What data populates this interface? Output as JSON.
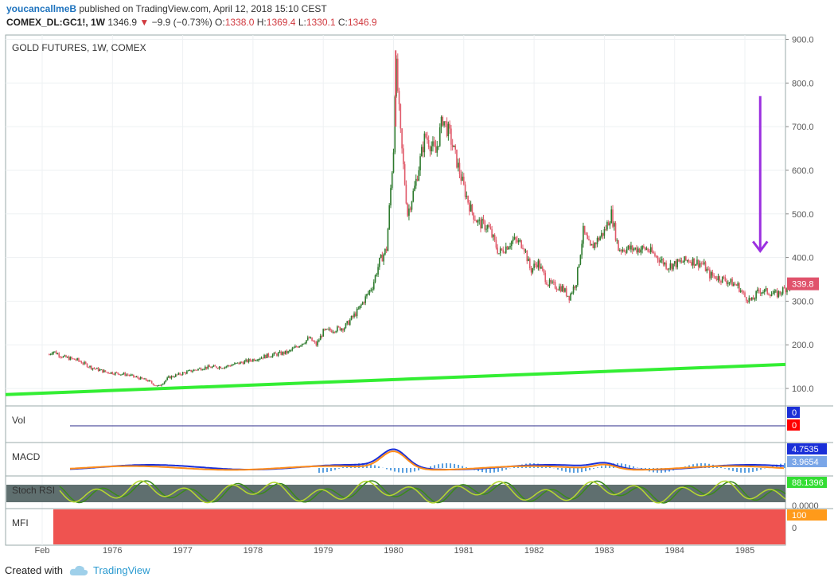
{
  "header": {
    "username": "youcancallmeB",
    "published": " published on TradingView.com, April 12, 2018 15:10 CEST",
    "symbol": "COMEX_DL:GC1!, 1W",
    "last": "1346.9",
    "change": "−9.9 (−0.73%)",
    "o_label": "O:",
    "o_val": "1338.0",
    "h_label": "H:",
    "h_val": "1369.4",
    "l_label": "L:",
    "l_val": "1330.1",
    "c_label": "C:",
    "c_val": "1346.9"
  },
  "footer": {
    "created_with": "Created with",
    "brand": "TradingView",
    "brand_icon": "cloud-icon"
  },
  "colors": {
    "up": "#2d7a2d",
    "down": "#e05a6a",
    "trendline": "#33ee33",
    "arrow": "#9b30e0",
    "macd_line": "#1a2fd8",
    "signal_line": "#ff8c1a",
    "hist": "#5aa0e0",
    "stoch_bg": "#5f6f6f",
    "stoch_k": "#3a8a1a",
    "stoch_d": "#b6d830",
    "mfi_fill": "#ef5350"
  },
  "chart_data": {
    "type": "candlestick",
    "title": "GOLD FUTURES, 1W, COMEX",
    "y_ticks": [
      "900.0",
      "800.0",
      "700.0",
      "600.0",
      "500.0",
      "400.0",
      "300.0",
      "200.0",
      "100.0"
    ],
    "ylim": [
      60,
      910
    ],
    "x_labels": [
      "Feb",
      "1976",
      "1977",
      "1978",
      "1979",
      "1980",
      "1981",
      "1982",
      "1983",
      "1984",
      "1985"
    ],
    "last_price": "339.8",
    "price_path": [
      [
        "1975.1",
        178
      ],
      [
        "1975.15",
        186
      ],
      [
        "1975.3",
        172
      ],
      [
        "1975.5",
        165
      ],
      [
        "1975.7",
        148
      ],
      [
        "1975.9",
        138
      ],
      [
        "1976.2",
        132
      ],
      [
        "1976.5",
        118
      ],
      [
        "1976.65",
        104
      ],
      [
        "1976.8",
        125
      ],
      [
        "1977.0",
        135
      ],
      [
        "1977.3",
        148
      ],
      [
        "1977.6",
        150
      ],
      [
        "1977.9",
        162
      ],
      [
        "1978.2",
        175
      ],
      [
        "1978.5",
        183
      ],
      [
        "1978.8",
        215
      ],
      [
        "1978.9",
        200
      ],
      [
        "1979.0",
        230
      ],
      [
        "1979.3",
        240
      ],
      [
        "1979.5",
        280
      ],
      [
        "1979.7",
        335
      ],
      [
        "1979.8",
        390
      ],
      [
        "1979.9",
        420
      ],
      [
        "1980.0",
        650
      ],
      [
        "1980.03",
        860
      ],
      [
        "1980.1",
        680
      ],
      [
        "1980.2",
        500
      ],
      [
        "1980.3",
        560
      ],
      [
        "1980.45",
        680
      ],
      [
        "1980.6",
        640
      ],
      [
        "1980.7",
        720
      ],
      [
        "1980.8",
        680
      ],
      [
        "1980.9",
        620
      ],
      [
        "1981.0",
        560
      ],
      [
        "1981.1",
        510
      ],
      [
        "1981.2",
        480
      ],
      [
        "1981.35",
        470
      ],
      [
        "1981.5",
        410
      ],
      [
        "1981.7",
        440
      ],
      [
        "1981.85",
        430
      ],
      [
        "1981.95",
        370
      ],
      [
        "1982.05",
        390
      ],
      [
        "1982.2",
        340
      ],
      [
        "1982.4",
        330
      ],
      [
        "1982.5",
        310
      ],
      [
        "1982.6",
        345
      ],
      [
        "1982.7",
        460
      ],
      [
        "1982.8",
        420
      ],
      [
        "1982.9",
        440
      ],
      [
        "1983.0",
        460
      ],
      [
        "1983.1",
        500
      ],
      [
        "1983.2",
        420
      ],
      [
        "1983.4",
        420
      ],
      [
        "1983.6",
        420
      ],
      [
        "1983.8",
        395
      ],
      [
        "1983.9",
        380
      ],
      [
        "1984.0",
        385
      ],
      [
        "1984.2",
        395
      ],
      [
        "1984.4",
        385
      ],
      [
        "1984.5",
        360
      ],
      [
        "1984.7",
        350
      ],
      [
        "1984.9",
        335
      ],
      [
        "1985.0",
        310
      ],
      [
        "1985.1",
        300
      ],
      [
        "1985.2",
        325
      ],
      [
        "1985.35",
        320
      ],
      [
        "1985.45",
        315
      ],
      [
        "1985.6",
        332
      ],
      [
        "1985.65",
        340
      ]
    ],
    "trendline": [
      [
        "1974.95",
        86
      ],
      [
        "1985.65",
        155
      ]
    ],
    "arrow": {
      "from": [
        "1985.15",
        770
      ],
      "to": [
        "1985.15",
        415
      ]
    },
    "panes": [
      {
        "name": "Vol",
        "labels": [
          "0",
          "0"
        ]
      },
      {
        "name": "MACD",
        "labels": [
          "4.7535",
          "3.9654"
        ]
      },
      {
        "name": "Stoch RSI",
        "labels": [
          "88.1396",
          "0.0000"
        ]
      },
      {
        "name": "MFI",
        "labels": [
          "100",
          "0"
        ]
      }
    ]
  }
}
